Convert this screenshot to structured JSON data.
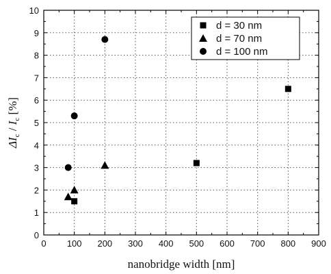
{
  "chart_data": {
    "type": "scatter",
    "xlabel": "nanobridge width [nm]",
    "ylabel": "ΔI / I [%]",
    "ylabel_parts": {
      "delta_i": "ΔI",
      "slash": " / ",
      "i": "I",
      "sub1": "c",
      "sub2": "c",
      "unit": " [%]"
    },
    "xlim": [
      0,
      900
    ],
    "ylim": [
      0,
      10
    ],
    "xticks": [
      0,
      100,
      200,
      300,
      400,
      500,
      600,
      700,
      800,
      900
    ],
    "yticks": [
      0,
      1,
      2,
      3,
      4,
      5,
      6,
      7,
      8,
      9,
      10
    ],
    "grid": true,
    "legend_position": "top-right",
    "series": [
      {
        "name": "d = 30 nm",
        "marker": "square",
        "x": [
          100,
          500,
          800
        ],
        "y": [
          1.5,
          3.2,
          6.5
        ]
      },
      {
        "name": "d = 70 nm",
        "marker": "triangle",
        "x": [
          80,
          100,
          200
        ],
        "y": [
          1.7,
          2.0,
          3.1
        ]
      },
      {
        "name": "d = 100 nm",
        "marker": "circle",
        "x": [
          80,
          100,
          200
        ],
        "y": [
          3.0,
          5.3,
          8.7
        ]
      }
    ],
    "colors": {
      "marker": "#000000",
      "axis": "#000000",
      "grid": "#555555",
      "background": "#ffffff"
    }
  }
}
